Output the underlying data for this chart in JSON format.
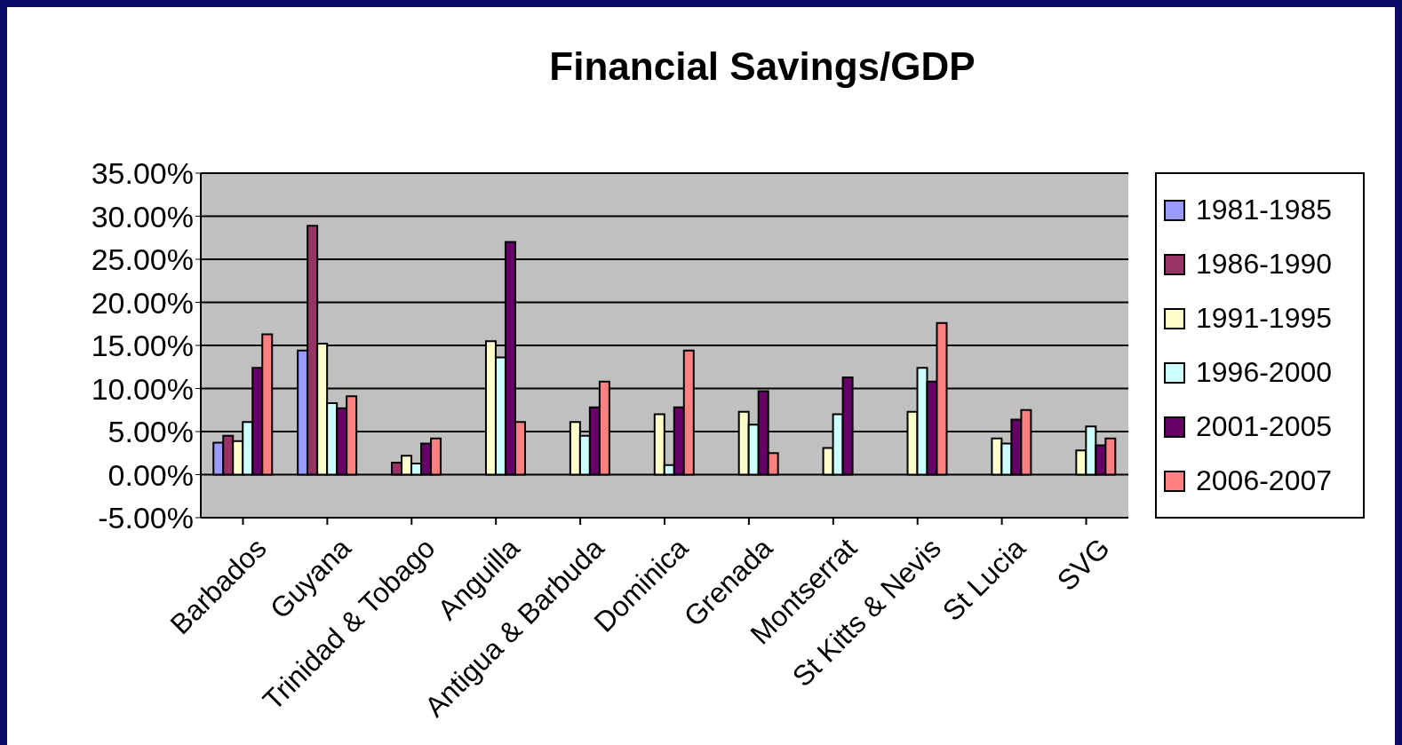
{
  "chart_data": {
    "type": "bar",
    "title": "Financial Savings/GDP",
    "categories": [
      "Barbados",
      "Guyana",
      "Trinidad & Tobago",
      "Anguilla",
      "Antigua & Barbuda",
      "Dominica",
      "Grenada",
      "Montserrat",
      "St Kitts & Nevis",
      "St Lucia",
      "SVG"
    ],
    "series": [
      {
        "name": "1981-1985",
        "color": "#9999ff",
        "values": [
          3.7,
          14.4,
          null,
          null,
          null,
          null,
          null,
          null,
          null,
          null,
          null
        ]
      },
      {
        "name": "1986-1990",
        "color": "#993366",
        "values": [
          4.5,
          28.9,
          1.4,
          null,
          null,
          null,
          null,
          null,
          null,
          null,
          null
        ]
      },
      {
        "name": "1991-1995",
        "color": "#ffffcc",
        "values": [
          3.9,
          15.2,
          2.2,
          15.5,
          6.1,
          7.0,
          7.3,
          3.1,
          7.3,
          4.2,
          2.8
        ]
      },
      {
        "name": "1996-2000",
        "color": "#ccffff",
        "values": [
          6.1,
          8.3,
          1.3,
          13.6,
          4.5,
          1.1,
          5.8,
          7.0,
          12.4,
          3.6,
          5.6
        ]
      },
      {
        "name": "2001-2005",
        "color": "#660066",
        "values": [
          12.4,
          7.7,
          3.6,
          27.0,
          7.8,
          7.8,
          9.7,
          11.3,
          10.8,
          6.4,
          3.4
        ]
      },
      {
        "name": "2006-2007",
        "color": "#ff8080",
        "values": [
          16.3,
          9.1,
          4.2,
          6.1,
          10.8,
          14.4,
          2.5,
          null,
          17.6,
          7.5,
          4.2
        ]
      }
    ],
    "ylim": [
      -5,
      35
    ],
    "yticks": [
      {
        "value": -5,
        "label": "-5.00%"
      },
      {
        "value": 0,
        "label": "0.00%"
      },
      {
        "value": 5,
        "label": "5.00%"
      },
      {
        "value": 10,
        "label": "10.00%"
      },
      {
        "value": 15,
        "label": "15.00%"
      },
      {
        "value": 20,
        "label": "20.00%"
      },
      {
        "value": 25,
        "label": "25.00%"
      },
      {
        "value": 30,
        "label": "30.00%"
      },
      {
        "value": 35,
        "label": "35.00%"
      }
    ],
    "grid": "y",
    "legend": "right"
  }
}
